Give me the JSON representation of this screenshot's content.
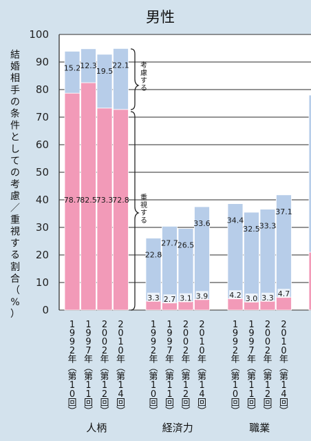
{
  "chart_data": {
    "type": "bar",
    "stacked": true,
    "title": "男性",
    "ylabel": "結婚相手の条件としての考慮／重視する割合（%）",
    "ylim": [
      0,
      100
    ],
    "yticks": [
      "0",
      "10",
      "20",
      "30",
      "40",
      "50",
      "60",
      "70",
      "80",
      "90",
      "100"
    ],
    "grid": true,
    "brace_labels": {
      "upper": "考慮する",
      "lower": "重視する"
    },
    "groups": [
      {
        "name": "人柄",
        "bars": [
          {
            "label": "1992年（第10回）",
            "juushi": 78.7,
            "kouryo": 15.2,
            "juushi_label": "78.7",
            "kouryo_label": "15.2"
          },
          {
            "label": "1997年（第11回）",
            "juushi": 82.5,
            "kouryo": 12.3,
            "juushi_label": "82.5",
            "kouryo_label": "12.3"
          },
          {
            "label": "2002年（第12回）",
            "juushi": 73.3,
            "kouryo": 19.5,
            "juushi_label": "73.3",
            "kouryo_label": "19.5"
          },
          {
            "label": "2010年（第14回）",
            "juushi": 72.8,
            "kouryo": 22.1,
            "juushi_label": "72.8",
            "kouryo_label": "22.1"
          }
        ]
      },
      {
        "name": "経済力",
        "bars": [
          {
            "label": "1992年（第10回）",
            "juushi": 3.3,
            "kouryo": 22.8,
            "juushi_label": "3.3",
            "kouryo_label": "22.8"
          },
          {
            "label": "1997年（第11回）",
            "juushi": 2.7,
            "kouryo": 27.7,
            "juushi_label": "2.7",
            "kouryo_label": "27.7"
          },
          {
            "label": "2002年（第12回）",
            "juushi": 3.1,
            "kouryo": 26.5,
            "juushi_label": "3.1",
            "kouryo_label": "26.5"
          },
          {
            "label": "2010年（第14回）",
            "juushi": 3.9,
            "kouryo": 33.6,
            "juushi_label": "3.9",
            "kouryo_label": "33.6"
          }
        ]
      },
      {
        "name": "職業",
        "bars": [
          {
            "label": "1992年（第10回）",
            "juushi": 4.2,
            "kouryo": 34.4,
            "juushi_label": "4.2",
            "kouryo_label": "34.4"
          },
          {
            "label": "1997年（第11回）",
            "juushi": 3.0,
            "kouryo": 32.5,
            "juushi_label": "3.0",
            "kouryo_label": "32.5"
          },
          {
            "label": "2002年（第12回）",
            "juushi": 3.3,
            "kouryo": 33.3,
            "juushi_label": "3.3",
            "kouryo_label": "33.3"
          },
          {
            "label": "2010年（第14回）",
            "juushi": 4.7,
            "kouryo": 37.1,
            "juushi_label": "4.7",
            "kouryo_label": "37.1"
          }
        ]
      },
      {
        "name": "",
        "partial": true,
        "bars": [
          {
            "label": "",
            "juushi": 21,
            "kouryo": 57
          }
        ]
      }
    ],
    "colors": {
      "juushi": "#f29ab8",
      "kouryo": "#b7cde9",
      "background": "#d3e2ed",
      "plot_background": "#ffffff",
      "grid": "#555555"
    }
  }
}
